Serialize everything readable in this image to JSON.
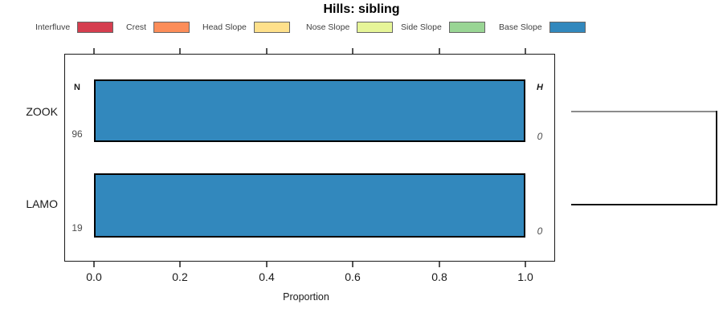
{
  "chart_data": {
    "type": "bar",
    "orientation": "horizontal",
    "stacked": true,
    "title": "Hills: sibling",
    "categories": [
      "ZOOK",
      "LAMO"
    ],
    "series": [
      {
        "name": "Interfluve",
        "color": "#D53E4F",
        "values": [
          0,
          0
        ]
      },
      {
        "name": "Crest",
        "color": "#FC8D59",
        "values": [
          0,
          0
        ]
      },
      {
        "name": "Head Slope",
        "color": "#FEE08B",
        "values": [
          0,
          0
        ]
      },
      {
        "name": "Nose Slope",
        "color": "#E6F598",
        "values": [
          0,
          0
        ]
      },
      {
        "name": "Side Slope",
        "color": "#99D594",
        "values": [
          0,
          0
        ]
      },
      {
        "name": "Base Slope",
        "color": "#3288BD",
        "values": [
          1.0,
          1.0
        ]
      }
    ],
    "xlabel": "Proportion",
    "xlim": [
      0,
      1
    ],
    "xticks": [
      "0.0",
      "0.2",
      "0.4",
      "0.6",
      "0.8",
      "1.0"
    ],
    "annotations": {
      "n_header": "N",
      "h_header": "H",
      "n_values": [
        "96",
        "19"
      ],
      "h_values": [
        "0",
        "0"
      ]
    },
    "legend_position": "top",
    "grid": false,
    "dendrogram": "right-bracket joining ZOOK and LAMO"
  }
}
